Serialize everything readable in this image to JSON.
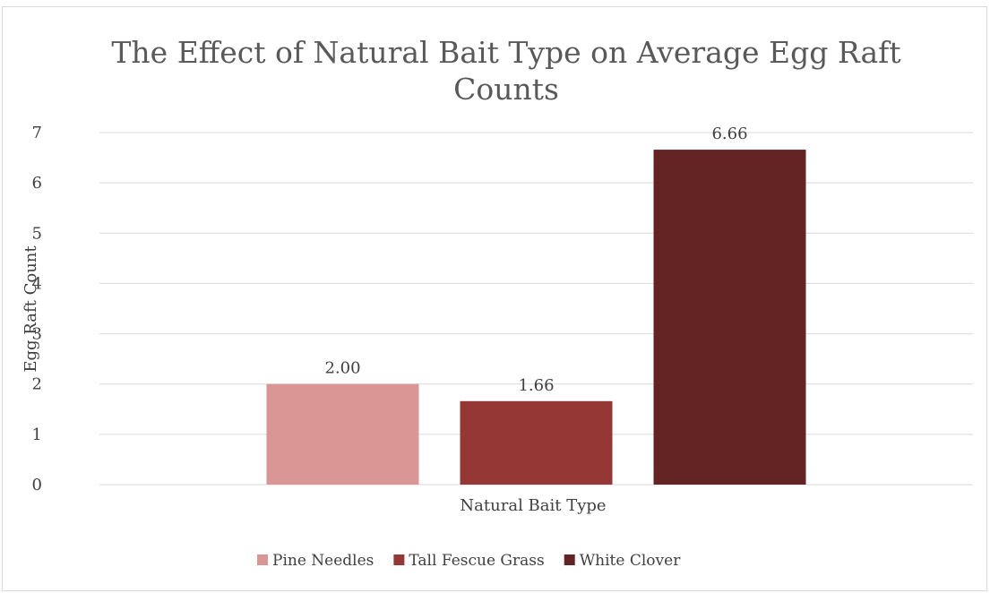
{
  "chart_data": {
    "type": "bar",
    "title_lines": [
      "The Effect of Natural Bait Type on Average Egg Raft",
      "Counts"
    ],
    "xlabel": "Natural Bait Type",
    "ylabel": "Egg Raft Count",
    "ylim": [
      0,
      7
    ],
    "y_ticks": [
      "0",
      "1",
      "2",
      "3",
      "4",
      "5",
      "6",
      "7"
    ],
    "grid": true,
    "legend_position": "bottom",
    "series": [
      {
        "name": "Pine Needles",
        "value": 2.0,
        "label": "2.00",
        "color": "#d99694"
      },
      {
        "name": "Tall Fescue Grass",
        "value": 1.66,
        "label": "1.66",
        "color": "#953735"
      },
      {
        "name": "White Clover",
        "value": 6.66,
        "label": "6.66",
        "color": "#632423"
      }
    ]
  }
}
